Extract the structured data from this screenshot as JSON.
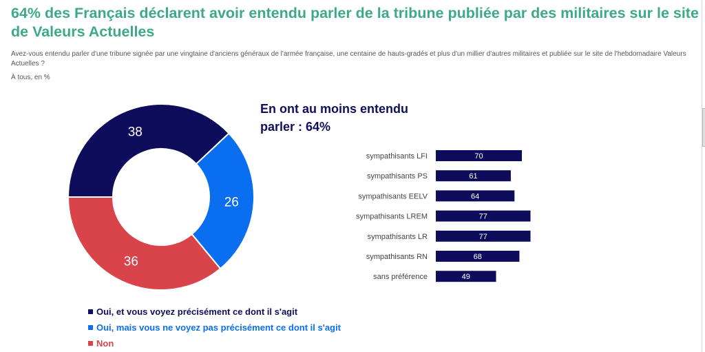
{
  "title": "64% des Français déclarent avoir entendu parler de la tribune publiée par des militaires sur le site de Valeurs Actuelles",
  "question": "Avez-vous entendu parler d'une tribune signée par une vingtaine d'anciens généraux de l'armée française, une centaine de hauts-gradés et plus d'un millier d'autres militaires et publiée sur le site de l'hebdomadaire Valeurs Actuelles ?",
  "base": "À tous, en %",
  "highlight": "En ont au moins entendu parler : 64%",
  "chart_data": [
    {
      "type": "pie",
      "subtype": "donut",
      "start": "9 o'clock, clockwise",
      "slices": [
        {
          "label": "Oui, et vous voyez précisément ce dont il s'agit",
          "value": 38,
          "display": "38",
          "color": "#0d0d5c"
        },
        {
          "label": "Oui, mais vous ne voyez pas précisément ce dont il s'agit",
          "value": 26,
          "display": "26",
          "color": "#0a6ef0"
        },
        {
          "label": "Non",
          "value": 36,
          "display": "36",
          "color": "#d9434a"
        }
      ]
    },
    {
      "type": "bar",
      "orientation": "horizontal",
      "color": "#0d0d5c",
      "categories": [
        "sympathisants LFI",
        "sympathisants PS",
        "sympathisants EELV",
        "sympathisants LREM",
        "sympathisants LR",
        "sympathisants RN",
        "sans préférence"
      ],
      "values": [
        70,
        61,
        64,
        77,
        77,
        68,
        49
      ],
      "labels": [
        "70",
        "61",
        "64",
        "77",
        "77",
        "68",
        "49"
      ],
      "xlim": [
        0,
        100
      ]
    }
  ]
}
